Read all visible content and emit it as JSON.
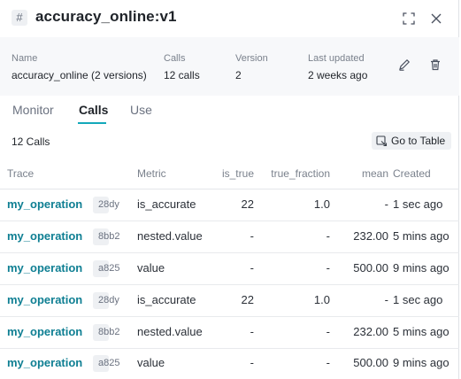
{
  "header": {
    "title": "accuracy_online:v1",
    "hash_glyph": "#"
  },
  "meta": {
    "name_label": "Name",
    "name_value": "accuracy_online (2 versions)",
    "calls_label": "Calls",
    "calls_value": "12 calls",
    "version_label": "Version",
    "version_value": "2",
    "updated_label": "Last updated",
    "updated_value": "2 weeks ago"
  },
  "tabs": [
    {
      "label": "Monitor",
      "active": false
    },
    {
      "label": "Calls",
      "active": true
    },
    {
      "label": "Use",
      "active": false
    }
  ],
  "subheader": {
    "count": "12 Calls",
    "goto_label": "Go to Table"
  },
  "table": {
    "columns": {
      "trace": "Trace",
      "metric": "Metric",
      "is_true": "is_true",
      "true_fraction": "true_fraction",
      "mean": "mean",
      "created": "Created"
    },
    "rows": [
      {
        "op": "my_operation",
        "hash": "28dy",
        "metric": "is_accurate",
        "is_true": "22",
        "true_fraction": "1.0",
        "mean": "-",
        "created": "1 sec ago"
      },
      {
        "op": "my_operation",
        "hash": "8bb2",
        "metric": "nested.value",
        "is_true": "-",
        "true_fraction": "-",
        "mean": "232.00",
        "created": "5 mins ago"
      },
      {
        "op": "my_operation",
        "hash": "a825",
        "metric": "value",
        "is_true": "-",
        "true_fraction": "-",
        "mean": "500.00",
        "created": "9 mins ago"
      },
      {
        "op": "my_operation",
        "hash": "28dy",
        "metric": "is_accurate",
        "is_true": "22",
        "true_fraction": "1.0",
        "mean": "-",
        "created": "1 sec ago"
      },
      {
        "op": "my_operation",
        "hash": "8bb2",
        "metric": "nested.value",
        "is_true": "-",
        "true_fraction": "-",
        "mean": "232.00",
        "created": "5 mins ago"
      },
      {
        "op": "my_operation",
        "hash": "a825",
        "metric": "value",
        "is_true": "-",
        "true_fraction": "-",
        "mean": "500.00",
        "created": "9 mins ago"
      }
    ]
  },
  "icons": {
    "expand": "expand-icon",
    "close": "close-icon",
    "edit": "pencil-icon",
    "delete": "trash-icon",
    "table": "table-link-icon"
  },
  "colors": {
    "accent": "#13a9ba",
    "link": "#0f7f93"
  }
}
